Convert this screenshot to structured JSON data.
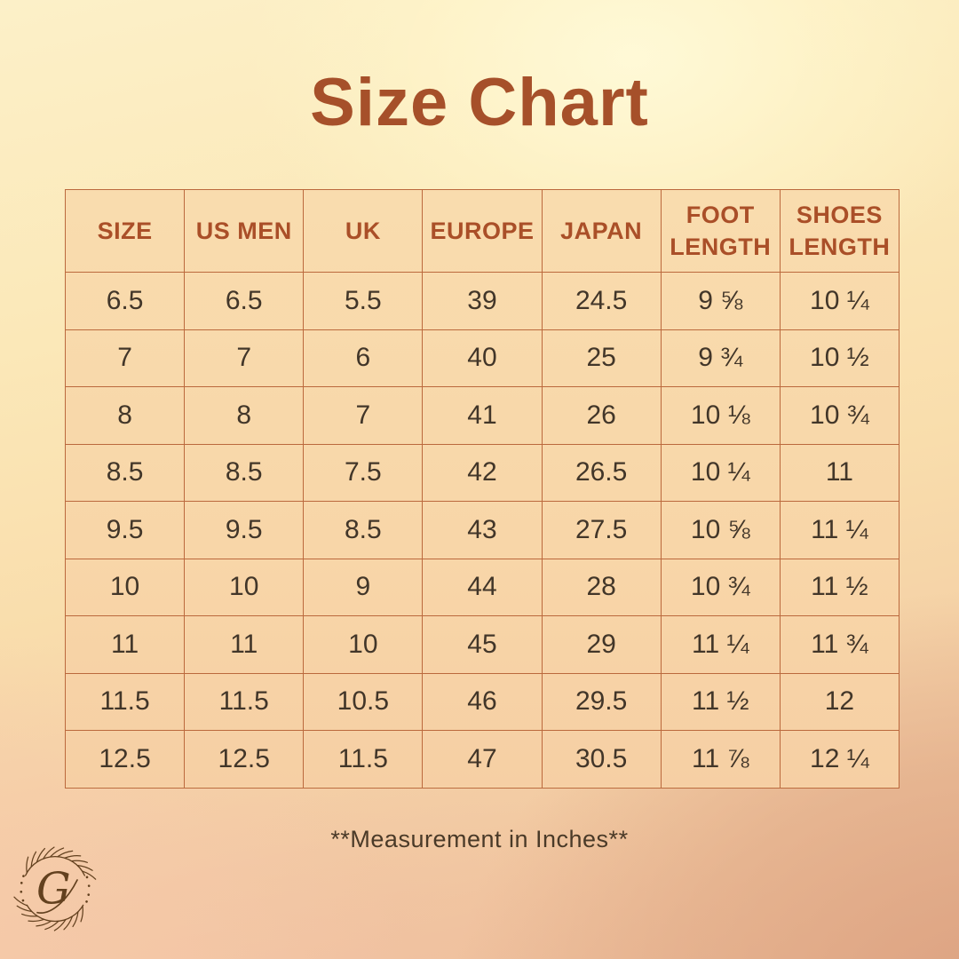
{
  "page": {
    "title": "Size Chart",
    "footnote": "**Measurement in Inches**"
  },
  "table": {
    "columns": [
      "SIZE",
      "US MEN",
      "UK",
      "EUROPE",
      "JAPAN",
      "FOOT LENGTH",
      "SHOES LENGTH"
    ],
    "rows": [
      [
        "6.5",
        "6.5",
        "5.5",
        "39",
        "24.5",
        "9 ⅝",
        "10 ¼"
      ],
      [
        "7",
        "7",
        "6",
        "40",
        "25",
        "9 ¾",
        "10 ½"
      ],
      [
        "8",
        "8",
        "7",
        "41",
        "26",
        "10 ⅛",
        "10 ¾"
      ],
      [
        "8.5",
        "8.5",
        "7.5",
        "42",
        "26.5",
        "10 ¼",
        "11"
      ],
      [
        "9.5",
        "9.5",
        "8.5",
        "43",
        "27.5",
        "10 ⅝",
        "11 ¼"
      ],
      [
        "10",
        "10",
        "9",
        "44",
        "28",
        "10 ¾",
        "11 ½"
      ],
      [
        "11",
        "11",
        "10",
        "45",
        "29",
        "11 ¼",
        "11 ¾"
      ],
      [
        "11.5",
        "11.5",
        "10.5",
        "46",
        "29.5",
        "11 ½",
        "12"
      ],
      [
        "12.5",
        "12.5",
        "11.5",
        "47",
        "30.5",
        "11 ⅞",
        "12 ¼"
      ]
    ]
  },
  "logo": {
    "monogram": "G"
  },
  "colors": {
    "title_text": "#a6502a",
    "header_text": "#aa4f28",
    "cell_text": "#423629",
    "table_border": "#bb693d",
    "cell_bg": "#f8d7a8",
    "footnote_text": "#4a3a28",
    "logo_brown": "#63411f"
  }
}
